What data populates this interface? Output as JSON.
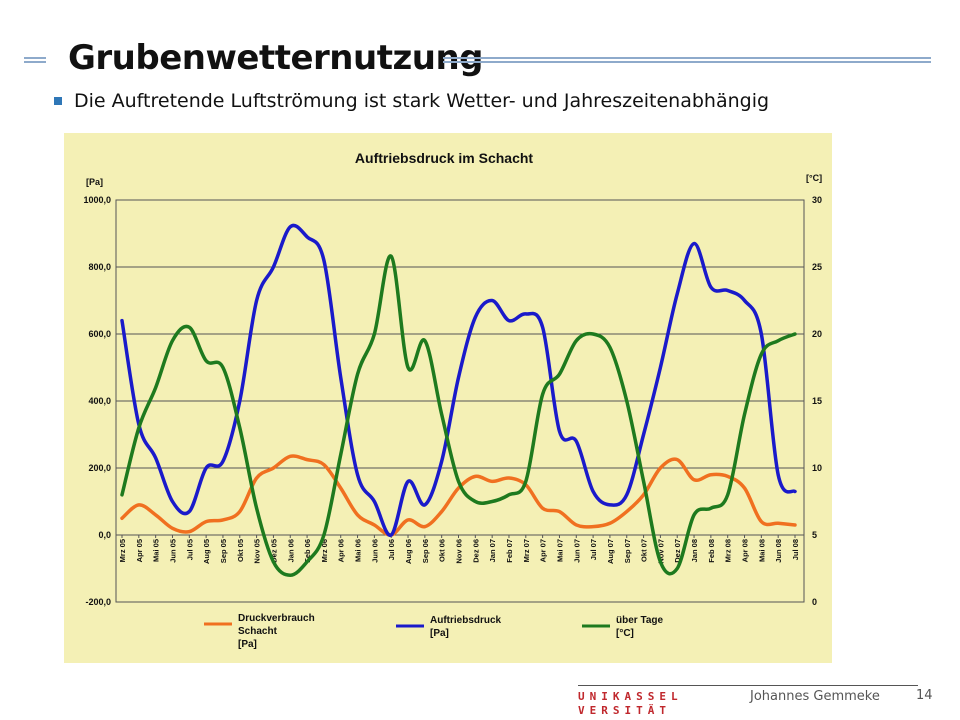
{
  "slide": {
    "title": "Grubenwetternutzung",
    "bullet": "Die Auftretende Luftströmung  ist stark Wetter- und Jahreszeitenabhängig",
    "accent_color": "#2f77b7",
    "chart_background": "#f4f0b5"
  },
  "footer": {
    "logo_line1": "UNIKASSEL",
    "logo_line2": "VERSITÄT",
    "author": "Johannes Gemmeke",
    "page": "14"
  },
  "chart_data": {
    "type": "line",
    "title": "Auftriebsdruck im Schacht",
    "left_unit": "[Pa]",
    "right_unit": "[°C]",
    "ylim_left": [
      -200,
      1000
    ],
    "ylim_right": [
      0,
      30
    ],
    "left_ticks": [
      "1000,0",
      "800,0",
      "600,0",
      "400,0",
      "200,0",
      "0,0",
      "-200,0"
    ],
    "left_tick_values": [
      1000,
      800,
      600,
      400,
      200,
      0,
      -200
    ],
    "right_ticks": [
      "30",
      "25",
      "20",
      "15",
      "10",
      "5",
      "0"
    ],
    "right_tick_values": [
      30,
      25,
      20,
      15,
      10,
      5,
      0
    ],
    "grid": "horizontal",
    "categories": [
      "Mrz 05",
      "Apr 05",
      "Mai 05",
      "Jun 05",
      "Jul 05",
      "Aug 05",
      "Sep 05",
      "Okt 05",
      "Nov 05",
      "Dez 05",
      "Jan 06",
      "Feb 06",
      "Mrz 06",
      "Apr 06",
      "Mai 06",
      "Jun 06",
      "Jul 06",
      "Aug 06",
      "Sep 06",
      "Okt 06",
      "Nov 06",
      "Dez 06",
      "Jan 07",
      "Feb 07",
      "Mrz 07",
      "Apr 07",
      "Mai 07",
      "Jun 07",
      "Jul 07",
      "Aug 07",
      "Sep 07",
      "Okt 07",
      "Nov 07",
      "Dez 07",
      "Jan 08",
      "Feb 08",
      "Mrz 08",
      "Apr 08",
      "Mai 08",
      "Jun 08",
      "Jul 08"
    ],
    "series": [
      {
        "name": "Druckverbrauch Schacht [Pa]",
        "axis": "left",
        "color": "#f07020",
        "values": [
          50,
          90,
          60,
          20,
          10,
          40,
          45,
          70,
          170,
          200,
          235,
          225,
          210,
          140,
          60,
          30,
          0,
          45,
          25,
          70,
          140,
          175,
          160,
          170,
          150,
          80,
          70,
          30,
          25,
          35,
          70,
          120,
          200,
          225,
          165,
          180,
          175,
          140,
          40,
          35,
          30
        ]
      },
      {
        "name": "Auftriebsdruck [Pa]",
        "axis": "left",
        "color": "#1a1aca",
        "values": [
          640,
          330,
          230,
          100,
          70,
          200,
          220,
          400,
          700,
          800,
          920,
          890,
          820,
          470,
          180,
          100,
          0,
          160,
          90,
          220,
          470,
          650,
          700,
          640,
          660,
          620,
          310,
          280,
          130,
          90,
          120,
          300,
          500,
          720,
          870,
          740,
          730,
          700,
          600,
          180,
          130
        ]
      },
      {
        "name": "über Tage [°C]",
        "axis": "right",
        "color": "#1e7a1e",
        "values": [
          8,
          13,
          16,
          19.5,
          20.5,
          18,
          17.5,
          13,
          7,
          3,
          2,
          3,
          5,
          11,
          17,
          20,
          25.8,
          17.5,
          19.5,
          14,
          9,
          7.5,
          7.5,
          8,
          9,
          15.5,
          17,
          19.5,
          20,
          19,
          15,
          9,
          3,
          2.5,
          6.5,
          7,
          8,
          14,
          18.5,
          19.5,
          20
        ]
      }
    ],
    "legend_position": "bottom",
    "legend": [
      {
        "series": 0,
        "lines": [
          "Druckverbrauch",
          "Schacht",
          "[Pa]"
        ]
      },
      {
        "series": 1,
        "lines": [
          "Auftriebsdruck",
          "[Pa]"
        ]
      },
      {
        "series": 2,
        "lines": [
          "über Tage",
          "[°C]"
        ]
      }
    ]
  }
}
